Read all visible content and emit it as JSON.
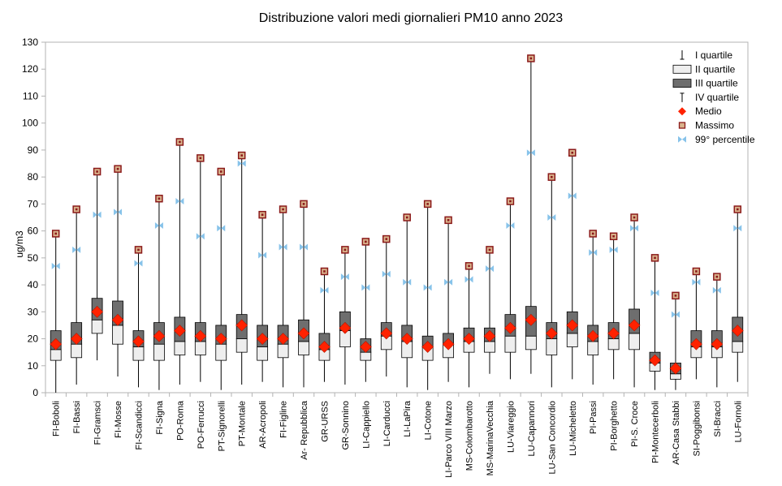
{
  "chart_data": {
    "type": "box",
    "title": "Distribuzione valori medi giornalieri PM10 anno 2023",
    "xlabel": "",
    "ylabel": "ug/m3",
    "ylim": [
      0,
      130
    ],
    "yticks": [
      0,
      10,
      20,
      30,
      40,
      50,
      60,
      70,
      80,
      90,
      100,
      110,
      120,
      130
    ],
    "grid": false,
    "legend_position": "top-right",
    "legend": {
      "q1": "I quartile",
      "q2": "II quartile",
      "q3": "III quartile",
      "q4": "IV quartile",
      "mean": "Medio",
      "max": "Massimo",
      "p99": "99° percentile"
    },
    "colors": {
      "q2_fill": "#eeeeee",
      "q3_fill": "#6e6e6e",
      "mean": "#ff2200",
      "max": "#8b1a1a",
      "p99": "#87c3ea"
    },
    "categories": [
      "FI-Boboli",
      "FI-Bassi",
      "FI-Gramsci",
      "FI-Mosse",
      "FI-Scandicci",
      "FI-Signa",
      "PO-Roma",
      "PO-Ferrucci",
      "PT-Signorelli",
      "PT-Montale",
      "AR-Acropoli",
      "FI-Figline",
      "Ar- Repubblica",
      "GR-URSS",
      "GR-Sonnino",
      "LI-Cappiello",
      "LI-Carducci",
      "LI-LaPira",
      "LI-Cotone",
      "LI-Parco VIII Marzo",
      "MS-Colombarotto",
      "MS-MarinaVecchia",
      "LU-Viareggio",
      "LU-Capannori",
      "LU-San Concordio",
      "LU-Micheletto",
      "PI-Passi",
      "PI-Borghetto",
      "PI-S. Croce",
      "PI-Montecerboli",
      "AR-Casa Stabbi",
      "SI-Poggibonsi",
      "SI-Bracci",
      "LU-Fornoli"
    ],
    "series": [
      {
        "name": "Minimo",
        "values": [
          0,
          3,
          12,
          6,
          2,
          1,
          3,
          4,
          1,
          3,
          4,
          2,
          2,
          4,
          3,
          4,
          6,
          2,
          1,
          4,
          2,
          7,
          5,
          7,
          2,
          5,
          3,
          5,
          2,
          1,
          1,
          5,
          2,
          4
        ]
      },
      {
        "name": "I quartile",
        "values": [
          12,
          13,
          22,
          18,
          12,
          12,
          14,
          14,
          12,
          15,
          12,
          13,
          14,
          12,
          17,
          12,
          16,
          13,
          12,
          13,
          15,
          15,
          15,
          16,
          14,
          17,
          14,
          16,
          16,
          8,
          5,
          13,
          13,
          15
        ]
      },
      {
        "name": "Mediana",
        "values": [
          16,
          18,
          27,
          25,
          17,
          18,
          19,
          19,
          18,
          20,
          17,
          18,
          19,
          16,
          23,
          15,
          21,
          19,
          17,
          18,
          19,
          19,
          21,
          21,
          20,
          22,
          19,
          20,
          22,
          11,
          7,
          17,
          17,
          19
        ]
      },
      {
        "name": "III quartile",
        "values": [
          23,
          26,
          35,
          34,
          23,
          26,
          28,
          26,
          25,
          29,
          25,
          25,
          27,
          22,
          30,
          20,
          26,
          25,
          21,
          22,
          24,
          24,
          29,
          32,
          26,
          30,
          25,
          26,
          31,
          15,
          11,
          23,
          23,
          28
        ]
      },
      {
        "name": "Medio",
        "values": [
          18,
          20,
          30,
          27,
          19,
          21,
          23,
          21,
          20,
          25,
          20,
          20,
          22,
          17,
          24,
          17,
          22,
          20,
          17,
          18,
          20,
          21,
          24,
          27,
          22,
          25,
          21,
          22,
          25,
          12,
          9,
          18,
          18,
          23
        ]
      },
      {
        "name": "Massimo",
        "values": [
          59,
          68,
          82,
          83,
          53,
          72,
          93,
          87,
          82,
          88,
          66,
          68,
          70,
          45,
          53,
          56,
          57,
          65,
          70,
          64,
          47,
          53,
          71,
          124,
          80,
          89,
          59,
          58,
          65,
          50,
          36,
          45,
          43,
          68
        ]
      },
      {
        "name": "99° percentile",
        "values": [
          47,
          53,
          66,
          67,
          48,
          62,
          71,
          58,
          61,
          85,
          51,
          54,
          54,
          38,
          43,
          39,
          44,
          41,
          39,
          41,
          42,
          46,
          62,
          89,
          65,
          73,
          52,
          53,
          61,
          37,
          29,
          41,
          38,
          61
        ]
      }
    ]
  }
}
